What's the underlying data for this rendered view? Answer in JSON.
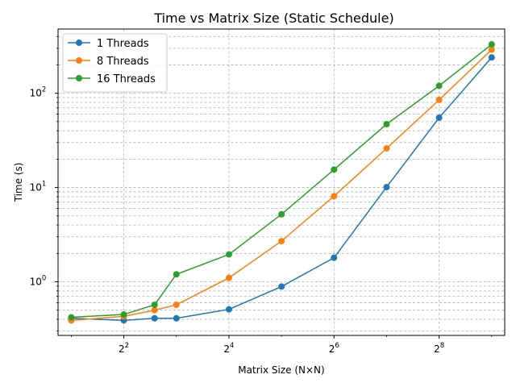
{
  "chart_data": {
    "type": "line",
    "title": "Time vs Matrix Size (Static Schedule)",
    "xlabel": "Matrix Size (N×N)",
    "ylabel": "Time (s)",
    "xscale": "log2",
    "yscale": "log10",
    "x": [
      2,
      4,
      6,
      8,
      16,
      32,
      64,
      128,
      256,
      512
    ],
    "xlim": [
      1.68,
      608
    ],
    "ylim": [
      0.27,
      480
    ],
    "grid": "both, major and minor, dashed",
    "legend": "top-left",
    "x_ticks": [
      {
        "value": 4,
        "base": "2",
        "exp": "2"
      },
      {
        "value": 16,
        "base": "2",
        "exp": "4"
      },
      {
        "value": 64,
        "base": "2",
        "exp": "6"
      },
      {
        "value": 256,
        "base": "2",
        "exp": "8"
      }
    ],
    "y_ticks": [
      {
        "value": 1,
        "base": "10",
        "exp": "0"
      },
      {
        "value": 10,
        "base": "10",
        "exp": "1"
      },
      {
        "value": 100,
        "base": "10",
        "exp": "2"
      }
    ],
    "series": [
      {
        "name": "1 Threads",
        "color": "#1f77b4",
        "values": [
          0.41,
          0.39,
          0.41,
          0.41,
          0.51,
          0.89,
          1.8,
          10.1,
          55,
          240
        ]
      },
      {
        "name": "8 Threads",
        "color": "#ff7f0e",
        "values": [
          0.39,
          0.43,
          0.5,
          0.57,
          1.1,
          2.7,
          8.1,
          26,
          85,
          290
        ]
      },
      {
        "name": "16 Threads",
        "color": "#2ca02c",
        "values": [
          0.42,
          0.45,
          0.57,
          1.2,
          1.95,
          5.2,
          15.5,
          47,
          120,
          330
        ]
      }
    ]
  }
}
